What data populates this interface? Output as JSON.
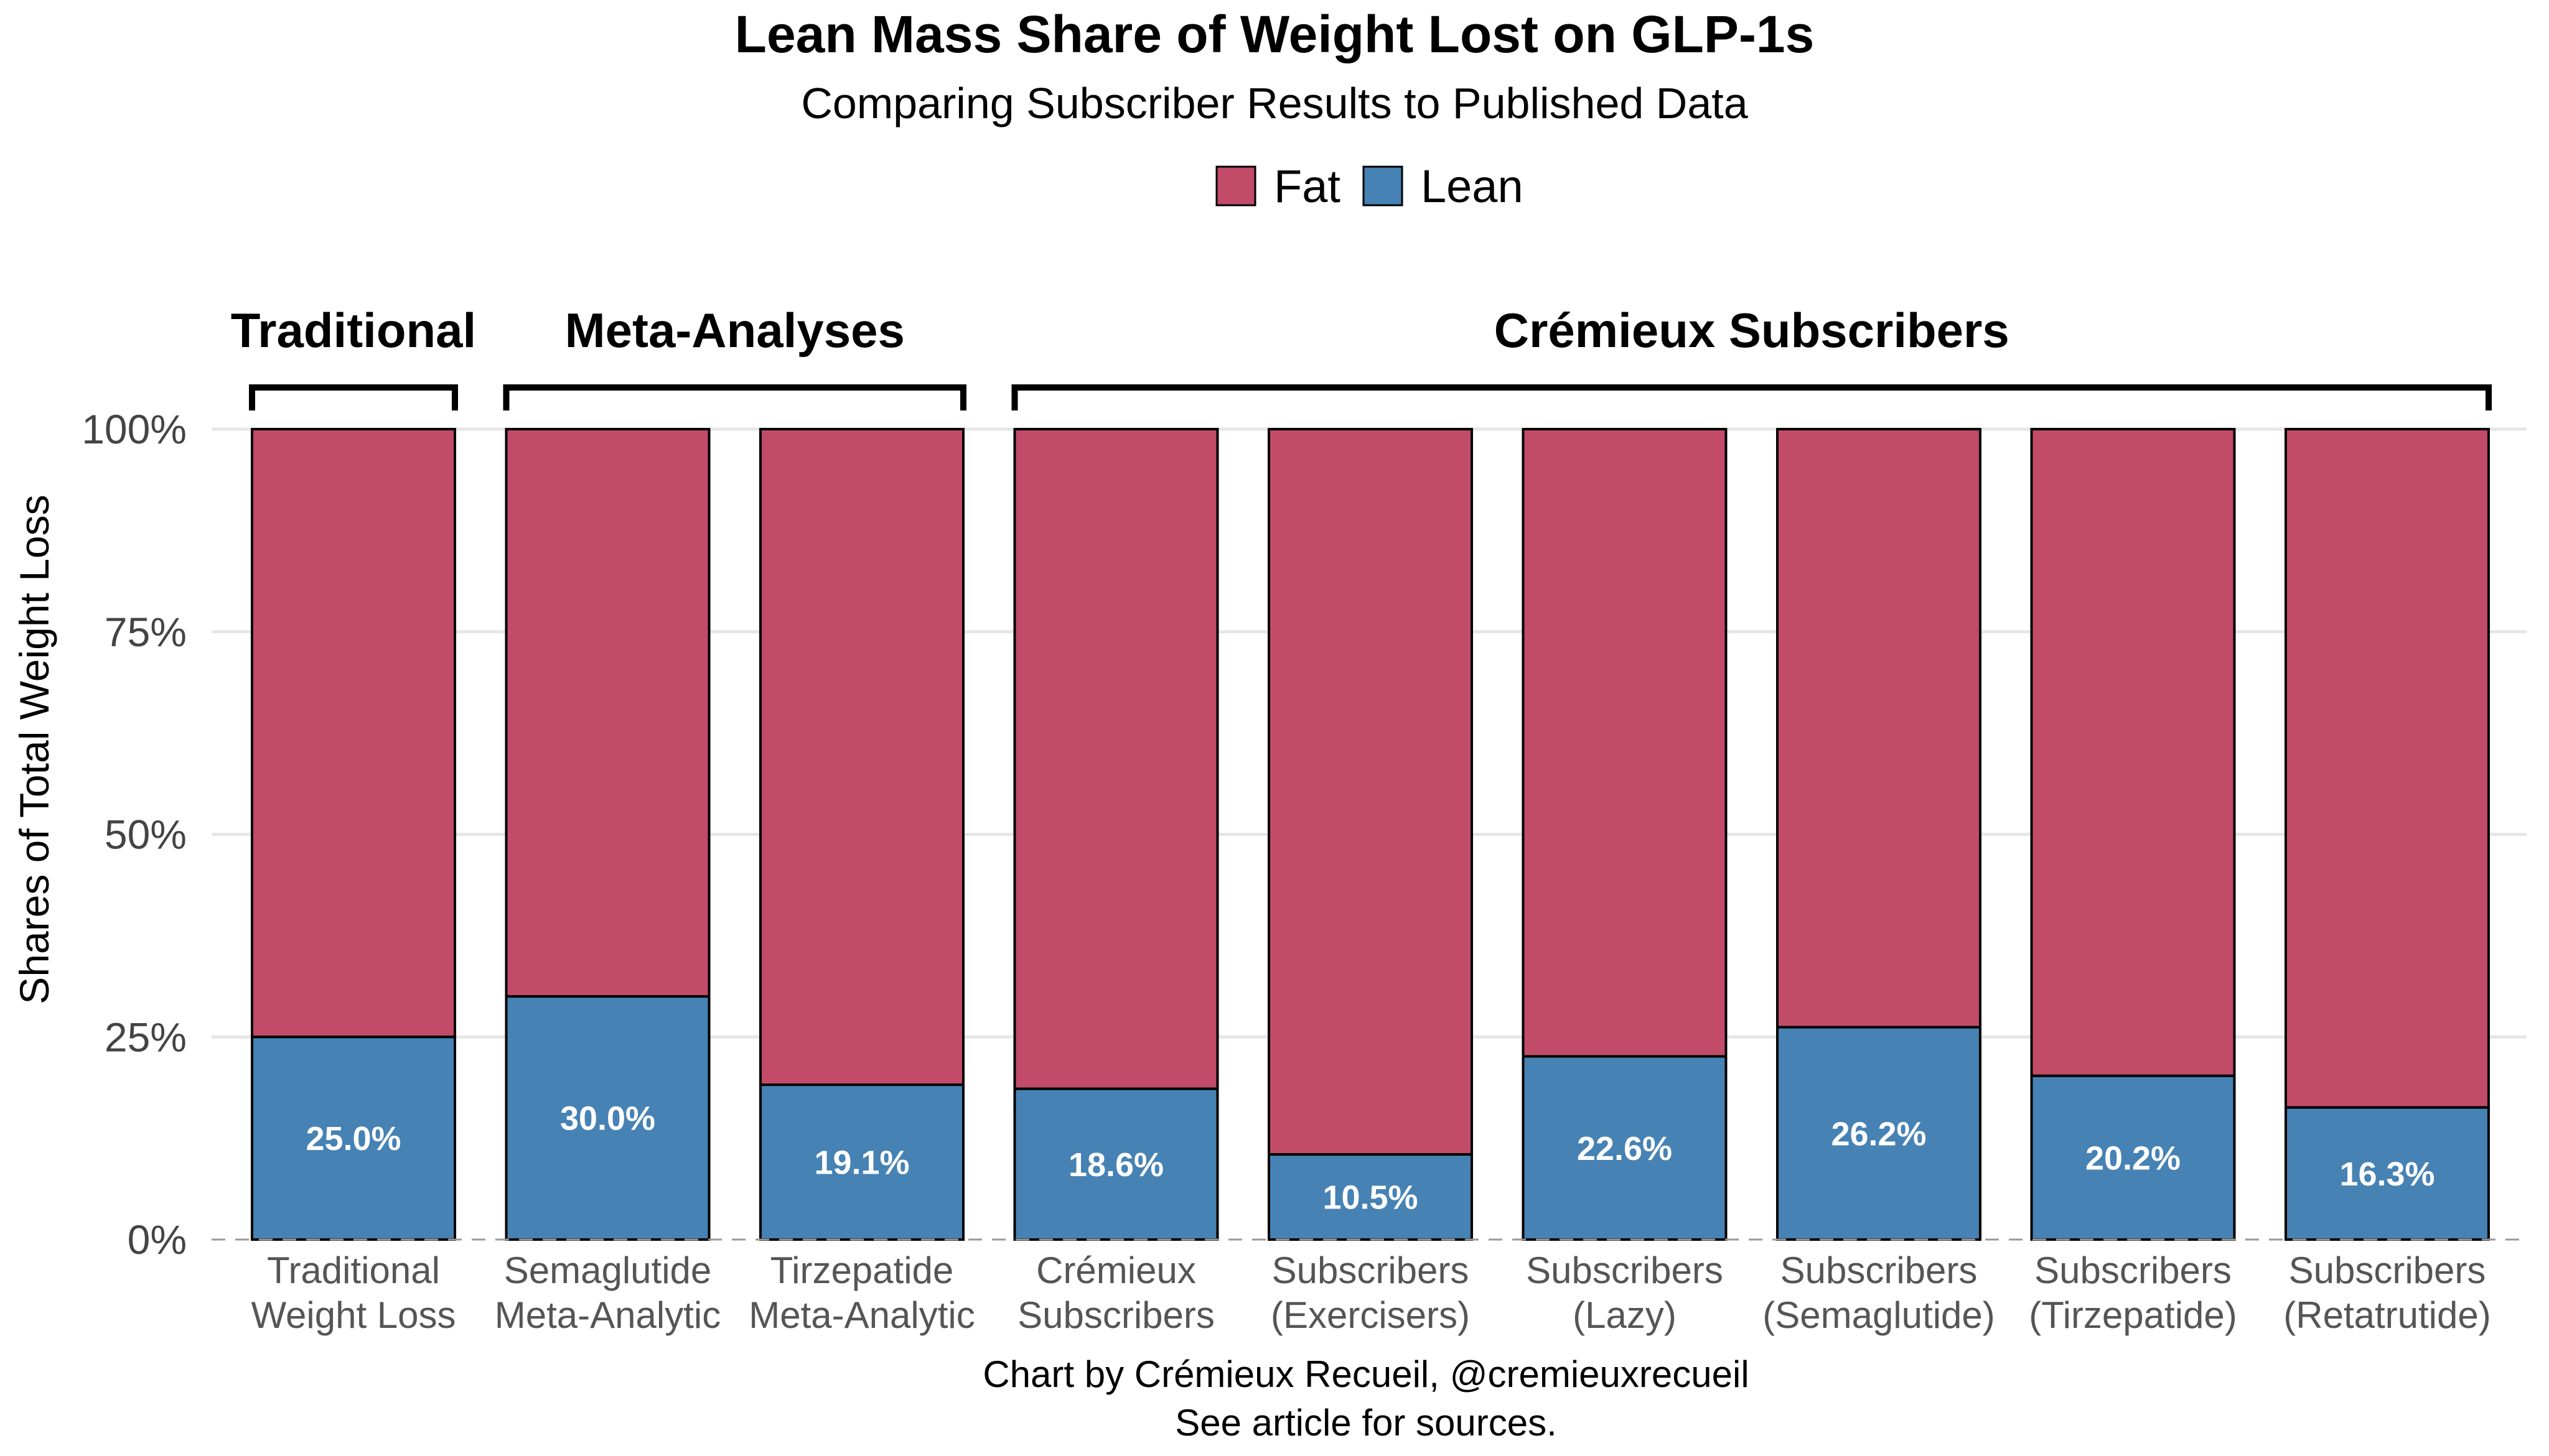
{
  "chart_data": {
    "type": "bar",
    "stacked": true,
    "title": "Lean Mass Share of Weight Lost on GLP-1s",
    "subtitle": "Comparing Subscriber Results to Published Data",
    "xlabel": "",
    "ylabel": "Shares of Total Weight Loss",
    "ylim": [
      0,
      100
    ],
    "yticks": [
      "0%",
      "25%",
      "50%",
      "75%",
      "100%"
    ],
    "ytick_values": [
      0,
      25,
      50,
      75,
      100
    ],
    "legend_position": "top",
    "categories": [
      [
        "Traditional",
        "Weight Loss"
      ],
      [
        "Semaglutide",
        "Meta-Analytic"
      ],
      [
        "Tirzepatide",
        "Meta-Analytic"
      ],
      [
        "Crémieux",
        "Subscribers"
      ],
      [
        "Subscribers",
        "(Exercisers)"
      ],
      [
        "Subscribers",
        "(Lazy)"
      ],
      [
        "Subscribers",
        "(Semaglutide)"
      ],
      [
        "Subscribers",
        "(Tirzepatide)"
      ],
      [
        "Subscribers",
        "(Retatrutide)"
      ]
    ],
    "series": [
      {
        "name": "Fat",
        "color": "#c14b68",
        "values": [
          75.0,
          70.0,
          80.9,
          81.4,
          89.5,
          77.4,
          73.8,
          79.8,
          83.7
        ]
      },
      {
        "name": "Lean",
        "color": "#4682b4",
        "values": [
          25.0,
          30.0,
          19.1,
          18.6,
          10.5,
          22.6,
          26.2,
          20.2,
          16.3
        ]
      }
    ],
    "data_labels": [
      "25.0%",
      "30.0%",
      "19.1%",
      "18.6%",
      "10.5%",
      "22.6%",
      "26.2%",
      "20.2%",
      "16.3%"
    ],
    "groups": [
      {
        "label": "Traditional",
        "first": 0,
        "last": 0
      },
      {
        "label": "Meta-Analyses",
        "first": 1,
        "last": 2
      },
      {
        "label": "Crémieux Subscribers",
        "first": 3,
        "last": 8
      }
    ],
    "caption": [
      "Chart by Crémieux Recueil, @cremieuxrecueil",
      "See article for sources."
    ]
  }
}
